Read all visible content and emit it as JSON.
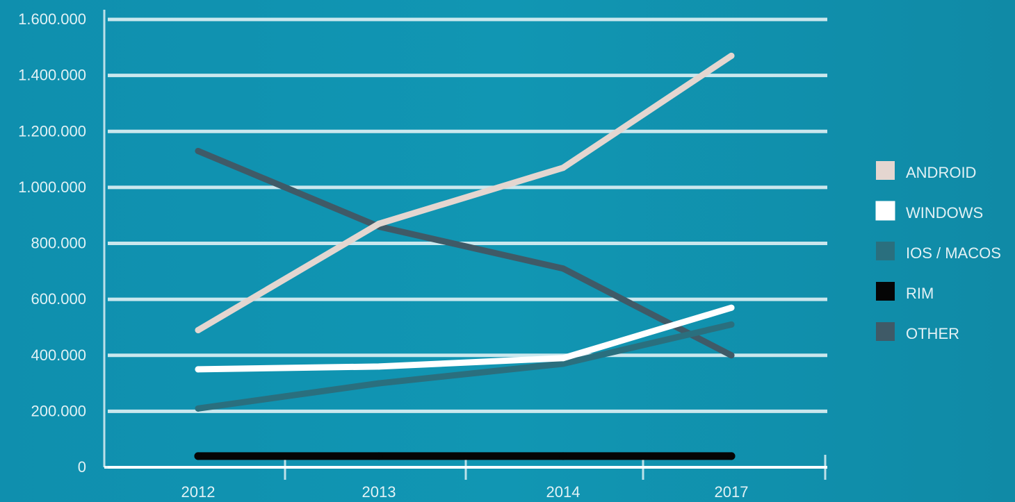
{
  "background_color": "#1192b0",
  "chart_data": {
    "type": "line",
    "title": "",
    "xlabel": "",
    "ylabel": "",
    "categories": [
      "2012",
      "2013",
      "2014",
      "2017"
    ],
    "ylim": [
      0,
      1600000
    ],
    "yticks": [
      0,
      200000,
      400000,
      600000,
      800000,
      1000000,
      1200000,
      1400000,
      1600000
    ],
    "ytick_labels": [
      "0",
      "200.000",
      "400.000",
      "600.000",
      "800.000",
      "1.000.000",
      "1.200.000",
      "1.400.000",
      "1.600.000"
    ],
    "grid": true,
    "legend_position": "right",
    "series": [
      {
        "name": "ANDROID",
        "color": "#e4d6d0",
        "values": [
          490000,
          870000,
          1070000,
          1470000
        ]
      },
      {
        "name": "WINDOWS",
        "color": "#ffffff",
        "values": [
          350000,
          360000,
          390000,
          570000
        ]
      },
      {
        "name": "IOS / MACOS",
        "color": "#2a6f7e",
        "values": [
          210000,
          300000,
          370000,
          510000
        ]
      },
      {
        "name": "RIM",
        "color": "#050505",
        "values": [
          40000,
          40000,
          40000,
          40000
        ]
      },
      {
        "name": "OTHER",
        "color": "#3f5a67",
        "values": [
          1130000,
          860000,
          710000,
          400000
        ]
      }
    ]
  }
}
